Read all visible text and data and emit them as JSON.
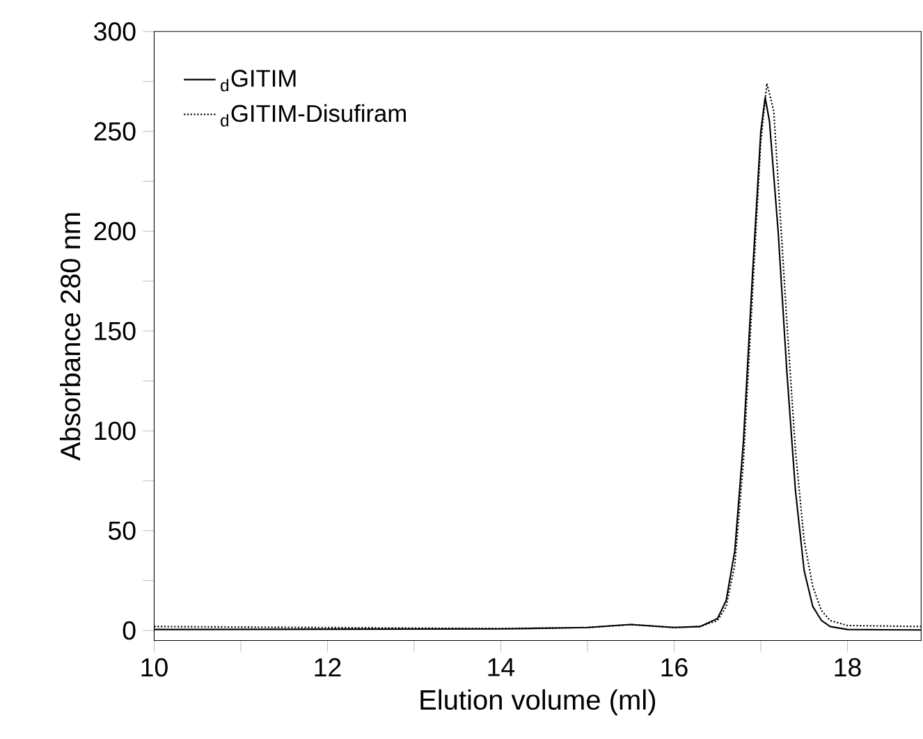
{
  "chart_data": {
    "type": "line",
    "xlabel": "Elution volume (ml)",
    "ylabel": "Absorbance 280 nm",
    "xlim": [
      10,
      18.85
    ],
    "ylim": [
      -5,
      300
    ],
    "xticks": [
      10,
      {
        "value": 11,
        "label": null
      },
      12,
      {
        "value": 13,
        "label": null
      },
      14,
      {
        "value": 15,
        "label": null
      },
      16,
      {
        "value": 17,
        "label": null
      },
      18
    ],
    "yticks": [
      0,
      {
        "value": 25,
        "label": null
      },
      50,
      {
        "value": 75,
        "label": null
      },
      100,
      {
        "value": 125,
        "label": null
      },
      150,
      {
        "value": 175,
        "label": null
      },
      200,
      {
        "value": 225,
        "label": null
      },
      250,
      {
        "value": 275,
        "label": null
      },
      300
    ],
    "legend": "top left",
    "grid": false,
    "series": [
      {
        "name": "$_{d}$GITIM",
        "color": "#000000",
        "line_style": "solid",
        "x": [
          10,
          14,
          15,
          15.5,
          16,
          16.3,
          16.5,
          16.6,
          16.7,
          16.8,
          16.9,
          17.0,
          17.05,
          17.1,
          17.2,
          17.3,
          17.4,
          17.5,
          17.6,
          17.7,
          17.8,
          18,
          18.85
        ],
        "values": [
          0.5,
          0.8,
          1.5,
          3,
          1.5,
          2,
          6,
          15,
          40,
          95,
          175,
          250,
          267,
          255,
          200,
          130,
          70,
          30,
          12,
          5,
          2,
          0.5,
          0.3
        ]
      },
      {
        "name": "$_{d}$GITIM-Disufiram",
        "color": "#000000",
        "line_style": "dotted",
        "x": [
          10,
          14,
          15,
          15.5,
          16,
          16.3,
          16.5,
          16.6,
          16.7,
          16.8,
          16.9,
          17.0,
          17.07,
          17.15,
          17.2,
          17.3,
          17.4,
          17.5,
          17.6,
          17.7,
          17.8,
          18,
          18.85
        ],
        "values": [
          2,
          1,
          1.5,
          3,
          1.5,
          2,
          5,
          12,
          33,
          85,
          165,
          245,
          274,
          260,
          225,
          155,
          90,
          45,
          22,
          10,
          5,
          2.5,
          2
        ]
      }
    ]
  }
}
